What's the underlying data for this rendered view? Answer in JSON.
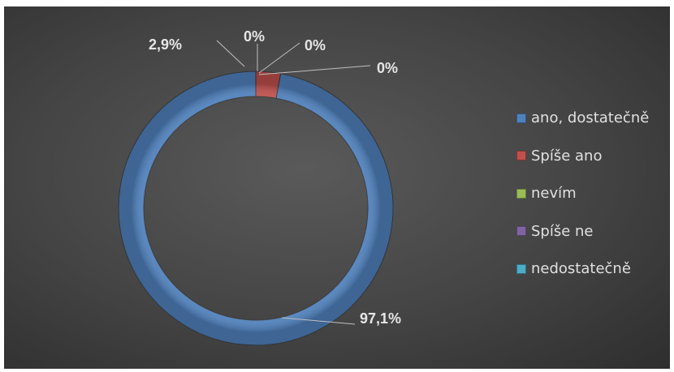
{
  "chart_data": {
    "type": "pie",
    "variant": "doughnut",
    "title": "",
    "categories": [
      "ano, dostatečně",
      "Spíše ano",
      "nevím",
      "Spíše ne",
      "nedostatečně"
    ],
    "values": [
      97.1,
      2.9,
      0,
      0,
      0
    ],
    "data_labels": [
      "97,1%",
      "2,9%",
      "0%",
      "0%",
      "0%"
    ],
    "colors": [
      "#4f81bd",
      "#c0504d",
      "#9bbb59",
      "#8064a2",
      "#4bacc6"
    ],
    "legend_position": "right",
    "background": "#444444"
  }
}
